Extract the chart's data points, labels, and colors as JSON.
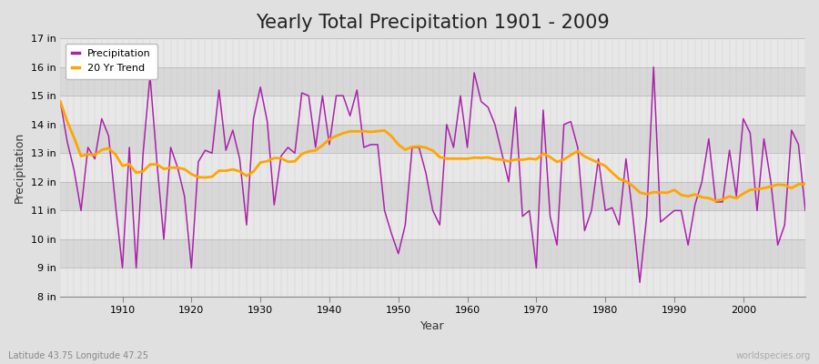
{
  "title": "Yearly Total Precipitation 1901 - 2009",
  "xlabel": "Year",
  "ylabel": "Precipitation",
  "subtitle": "Latitude 43.75 Longitude 47.25",
  "watermark": "worldspecies.org",
  "years": [
    1901,
    1902,
    1903,
    1904,
    1905,
    1906,
    1907,
    1908,
    1909,
    1910,
    1911,
    1912,
    1913,
    1914,
    1915,
    1916,
    1917,
    1918,
    1919,
    1920,
    1921,
    1922,
    1923,
    1924,
    1925,
    1926,
    1927,
    1928,
    1929,
    1930,
    1931,
    1932,
    1933,
    1934,
    1935,
    1936,
    1937,
    1938,
    1939,
    1940,
    1941,
    1942,
    1943,
    1944,
    1945,
    1946,
    1947,
    1948,
    1949,
    1950,
    1951,
    1952,
    1953,
    1954,
    1955,
    1956,
    1957,
    1958,
    1959,
    1960,
    1961,
    1962,
    1963,
    1964,
    1965,
    1966,
    1967,
    1968,
    1969,
    1970,
    1971,
    1972,
    1973,
    1974,
    1975,
    1976,
    1977,
    1978,
    1979,
    1980,
    1981,
    1982,
    1983,
    1984,
    1985,
    1986,
    1987,
    1988,
    1989,
    1990,
    1991,
    1992,
    1993,
    1994,
    1995,
    1996,
    1997,
    1998,
    1999,
    2000,
    2001,
    2002,
    2003,
    2004,
    2005,
    2006,
    2007,
    2008,
    2009
  ],
  "precip": [
    14.8,
    13.4,
    12.4,
    11.0,
    13.2,
    12.8,
    14.2,
    13.6,
    11.2,
    9.0,
    13.2,
    9.0,
    13.0,
    15.7,
    12.7,
    10.0,
    13.2,
    12.5,
    11.5,
    9.0,
    12.7,
    13.1,
    13.0,
    15.2,
    13.1,
    13.8,
    12.8,
    10.5,
    14.2,
    15.3,
    14.1,
    11.2,
    12.9,
    13.2,
    13.0,
    15.1,
    15.0,
    13.2,
    15.0,
    13.3,
    15.0,
    15.0,
    14.3,
    15.2,
    13.2,
    13.3,
    13.3,
    11.0,
    10.2,
    9.5,
    10.5,
    13.2,
    13.2,
    12.3,
    11.0,
    10.5,
    14.0,
    13.2,
    15.0,
    13.2,
    15.8,
    14.8,
    14.6,
    14.0,
    13.0,
    12.0,
    14.6,
    10.8,
    11.0,
    9.0,
    14.5,
    10.8,
    9.8,
    14.0,
    14.1,
    13.2,
    10.3,
    11.0,
    12.8,
    11.0,
    11.1,
    10.5,
    12.8,
    10.8,
    8.5,
    10.8,
    16.0,
    10.6,
    10.8,
    11.0,
    11.0,
    9.8,
    11.2,
    12.0,
    13.5,
    11.3,
    11.3,
    13.1,
    11.5,
    14.2,
    13.7,
    11.0,
    13.5,
    12.0,
    9.8,
    10.5,
    13.8,
    13.3,
    11.0
  ],
  "precip_color": "#aa22aa",
  "trend_color": "#FFA500",
  "bg_color": "#e0e0e0",
  "plot_bg_color": "#dcdcdc",
  "grid_h_color": "#f5f5f5",
  "grid_v_color": "#c8c8c8",
  "ylim_min": 8,
  "ylim_max": 17,
  "yticks": [
    8,
    9,
    10,
    11,
    12,
    13,
    14,
    15,
    16,
    17
  ],
  "ytick_labels": [
    "8 in",
    "9 in",
    "10 in",
    "11 in",
    "12 in",
    "13 in",
    "14 in",
    "15 in",
    "16 in",
    "17 in"
  ],
  "xtick_major": [
    1910,
    1920,
    1930,
    1940,
    1950,
    1960,
    1970,
    1980,
    1990,
    2000
  ],
  "title_fontsize": 15,
  "label_fontsize": 9,
  "tick_fontsize": 8,
  "legend_fontsize": 8,
  "trend_window": 20
}
